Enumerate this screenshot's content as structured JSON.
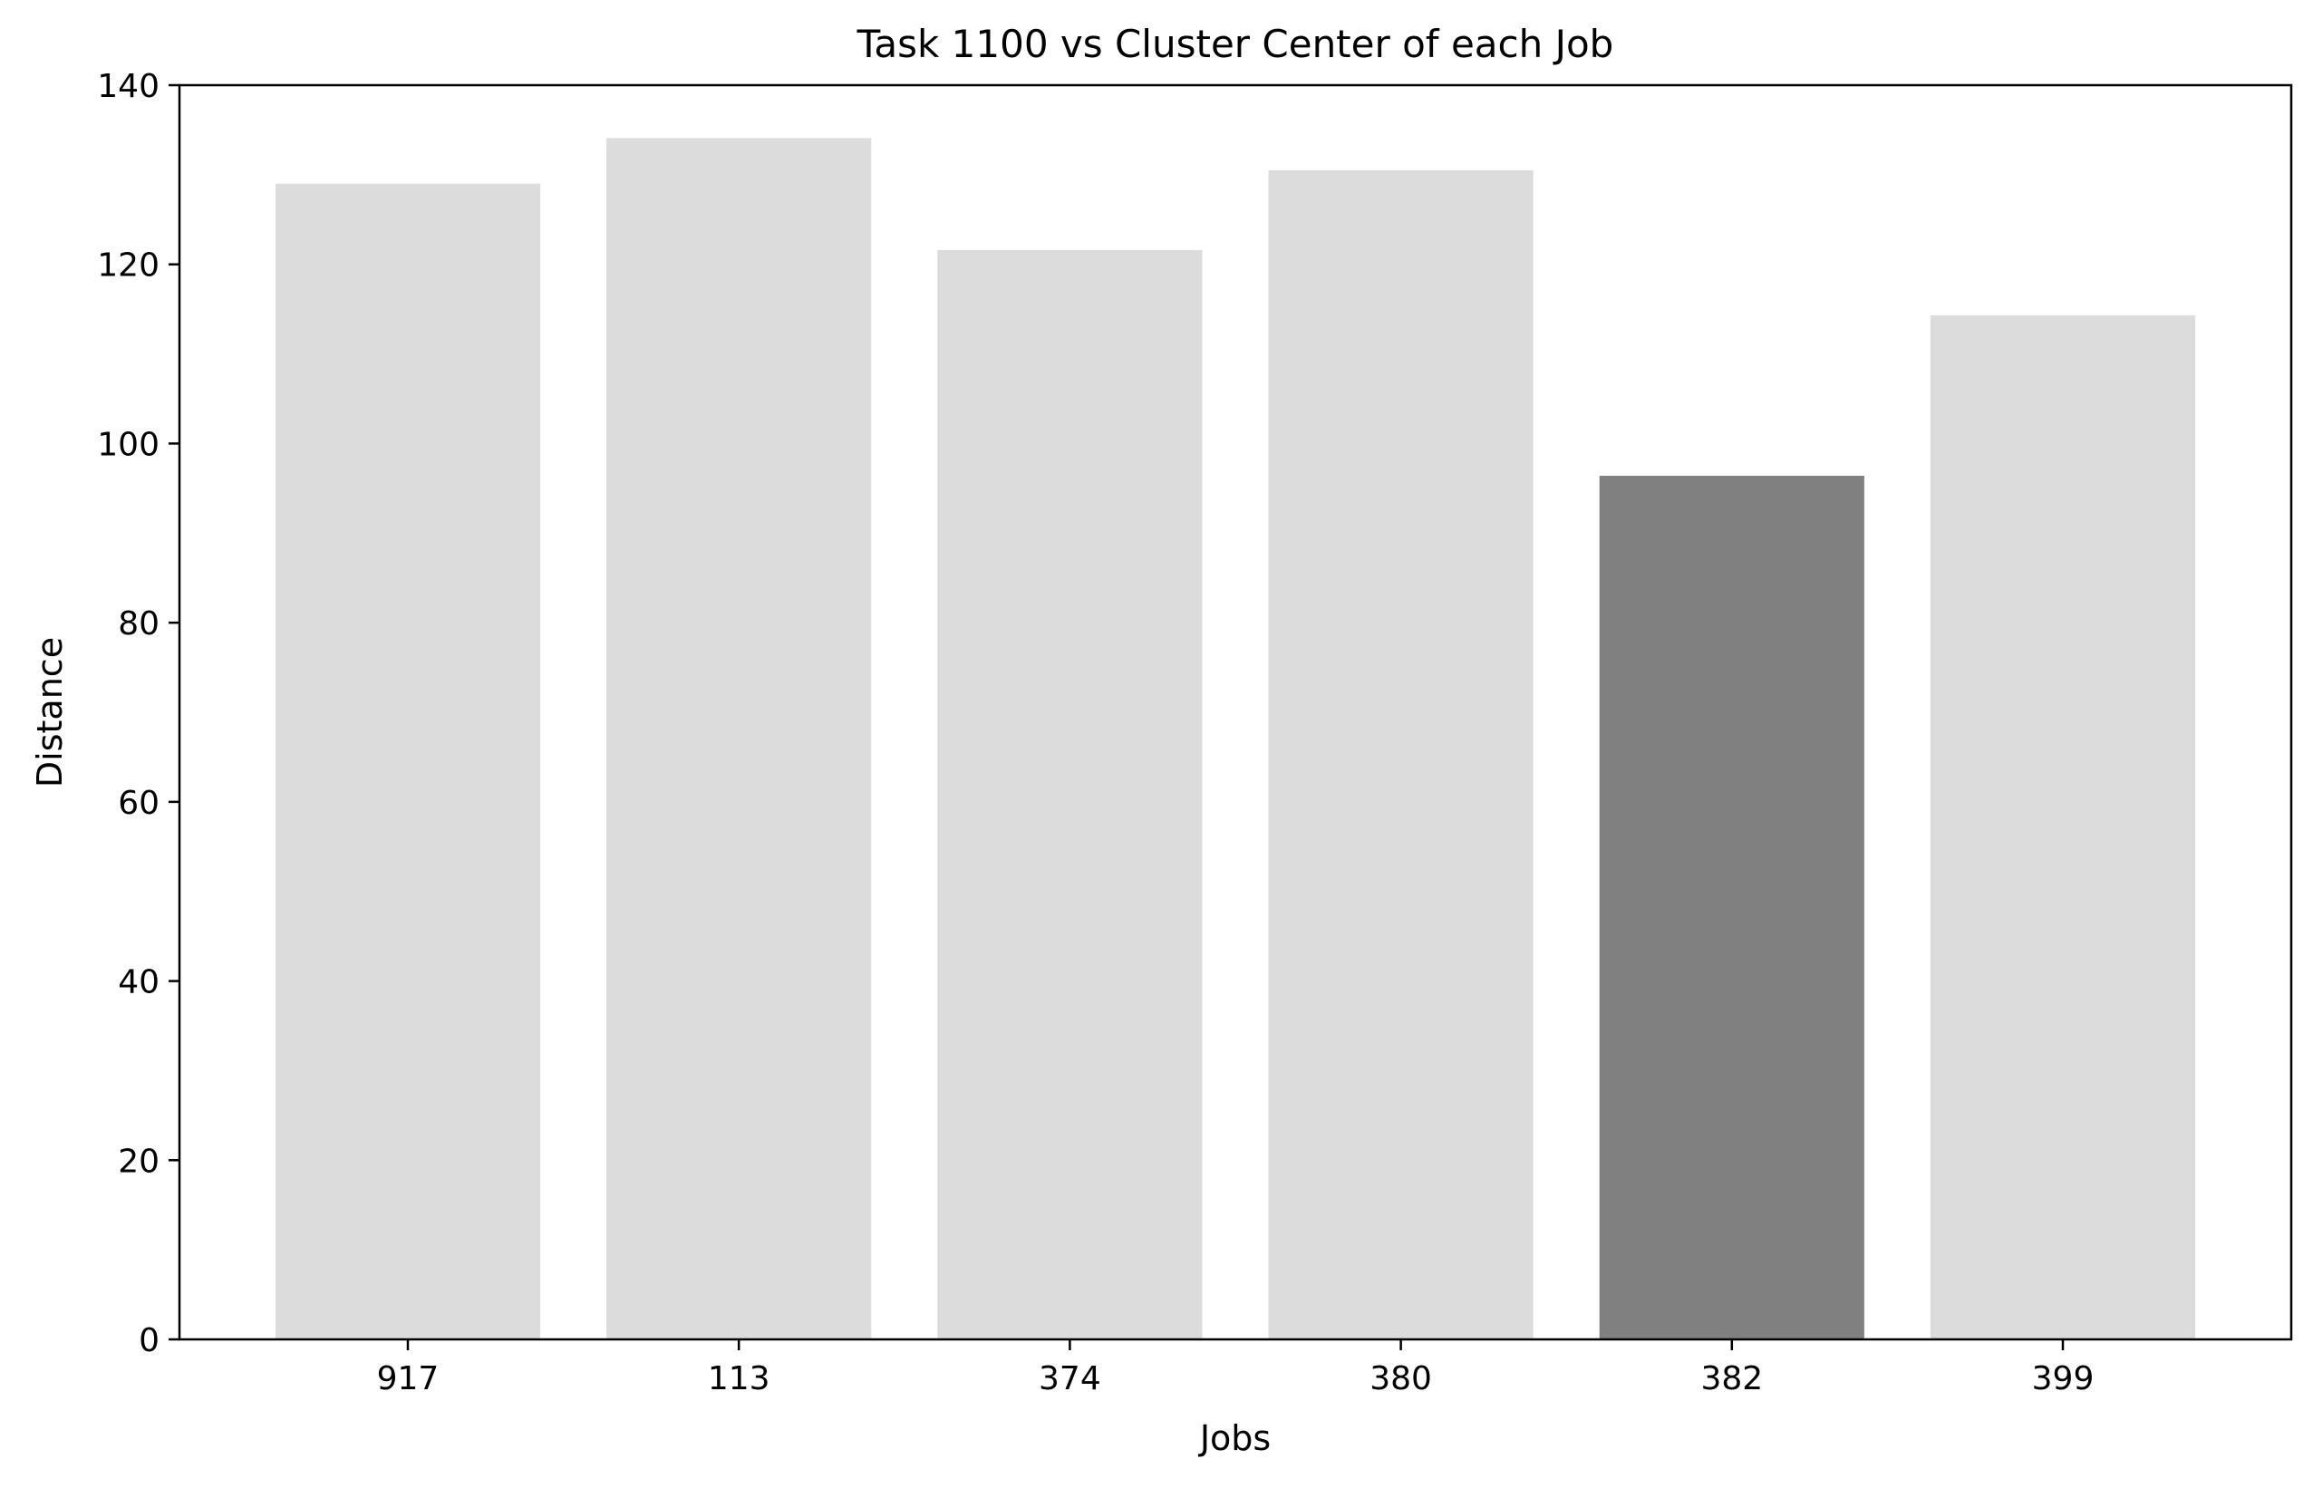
{
  "chart_data": {
    "type": "bar",
    "title": "Task 1100 vs Cluster Center of each Job",
    "xlabel": "Jobs",
    "ylabel": "Distance",
    "categories": [
      "917",
      "113",
      "374",
      "380",
      "382",
      "399"
    ],
    "values": [
      129.0,
      134.1,
      121.6,
      130.5,
      96.4,
      114.3
    ],
    "highlighted_category": "382",
    "ylim": [
      0,
      140
    ],
    "yticks": [
      0,
      20,
      40,
      60,
      80,
      100,
      120,
      140
    ],
    "grid": false,
    "legend": "none",
    "colors": {
      "bar": "#dcdcdc",
      "highlight": "#808080",
      "axis": "#000000",
      "background": "#ffffff"
    }
  }
}
